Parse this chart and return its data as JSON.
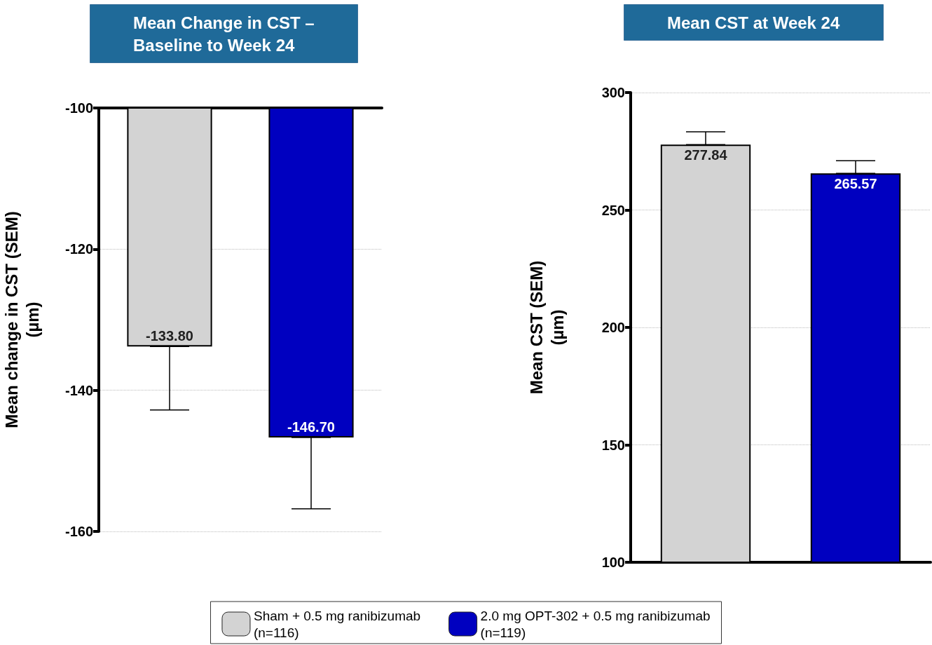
{
  "chart_data": [
    {
      "type": "bar",
      "title": "Mean Change in CST –\nBaseline to Week 24",
      "ylabel": "Mean change in CST (SEM)\n(µm)",
      "categories": [
        null,
        null
      ],
      "series": [
        {
          "name": "Sham + 0.5 mg ranibizumab\n(n=116)",
          "color": "#d3d3d3",
          "values": [
            -133.8,
            null
          ],
          "errors": [
            [
              -142.8,
              -133.8
            ],
            null
          ],
          "value_labels": [
            "-133.80",
            null
          ]
        },
        {
          "name": "2.0 mg OPT-302 + 0.5 mg ranibizumab\n(n=119)",
          "color": "#0000c0",
          "values": [
            null,
            -146.7
          ],
          "errors": [
            null,
            [
              -156.8,
              -146.7
            ]
          ],
          "value_labels": [
            null,
            "-146.70"
          ]
        }
      ],
      "ylim": [
        -160,
        -100
      ],
      "yticks": [
        -160,
        -140,
        -120,
        -100
      ],
      "grid": "y",
      "legend": "bottom",
      "tick_labels": "y"
    },
    {
      "type": "bar",
      "title": "Mean CST at Week 24",
      "ylabel": "Mean CST (SEM)\n(µm)",
      "categories": [
        null,
        null
      ],
      "series": [
        {
          "color": "#d3d3d3",
          "values": [
            277.84,
            null
          ],
          "errors": [
            [
              277.84,
              283.3
            ],
            null
          ],
          "value_labels": [
            "277.84",
            null
          ]
        },
        {
          "color": "#0000c0",
          "values": [
            null,
            265.57
          ],
          "errors": [
            null,
            [
              265.57,
              271.0
            ]
          ],
          "value_labels": [
            null,
            "265.57"
          ]
        }
      ],
      "ylim": [
        100,
        300
      ],
      "yticks": [
        100,
        150,
        200,
        250,
        300
      ],
      "grid": "y",
      "tick_labels": "y"
    }
  ]
}
